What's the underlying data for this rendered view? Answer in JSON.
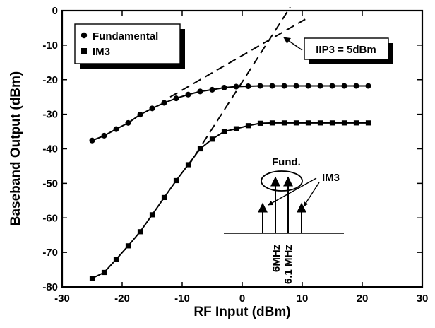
{
  "chart_data": {
    "type": "line",
    "xlabel": "RF Input (dBm)",
    "ylabel": "Baseband Output (dBm)",
    "xlim": [
      -30,
      30
    ],
    "ylim": [
      -80,
      0
    ],
    "x_ticks": [
      "-30",
      "-20",
      "-10",
      "0",
      "10",
      "20",
      "30"
    ],
    "y_ticks": [
      "0",
      "-10",
      "-20",
      "-30",
      "-40",
      "-50",
      "-60",
      "-70",
      "-80"
    ],
    "grid": false,
    "legend_position": "top-left",
    "series": [
      {
        "name": "Fundamental",
        "marker": "circle",
        "x": [
          -25,
          -23,
          -21,
          -19,
          -17,
          -15,
          -13,
          -11,
          -9,
          -7,
          -5,
          -3,
          -1,
          1,
          3,
          5,
          7,
          9,
          11,
          13,
          15,
          17,
          19,
          21
        ],
        "y": [
          -37.6,
          -36.2,
          -34.3,
          -32.5,
          -30.1,
          -28.3,
          -26.7,
          -25.4,
          -24.3,
          -23.4,
          -22.9,
          -22.3,
          -22.0,
          -21.9,
          -21.8,
          -21.8,
          -21.8,
          -21.8,
          -21.8,
          -21.8,
          -21.8,
          -21.8,
          -21.8,
          -21.8
        ]
      },
      {
        "name": "IM3",
        "marker": "square",
        "x": [
          -25,
          -23,
          -21,
          -19,
          -17,
          -15,
          -13,
          -11,
          -9,
          -7,
          -5,
          -3,
          -1,
          1,
          3,
          5,
          7,
          9,
          11,
          13,
          15,
          17,
          19,
          21
        ],
        "y": [
          -77.5,
          -75.8,
          -72.0,
          -68.1,
          -64.0,
          -59.1,
          -54.1,
          -49.2,
          -44.6,
          -40.0,
          -37.2,
          -35.0,
          -34.2,
          -33.3,
          -32.6,
          -32.5,
          -32.5,
          -32.5,
          -32.5,
          -32.5,
          -32.5,
          -32.5,
          -32.5,
          -32.5
        ]
      }
    ],
    "extrapolation_lines": [
      {
        "x": [
          -12,
          10.5
        ],
        "y": [
          -25,
          -2.5
        ]
      },
      {
        "x": [
          -9,
          8
        ],
        "y": [
          -45,
          1
        ]
      }
    ],
    "annotations": {
      "iip3": "IIP3 = 5dBm",
      "fund": "Fund.",
      "im3": "IM3",
      "freq1": "6MHz",
      "freq2": "6.1 MHz"
    }
  }
}
